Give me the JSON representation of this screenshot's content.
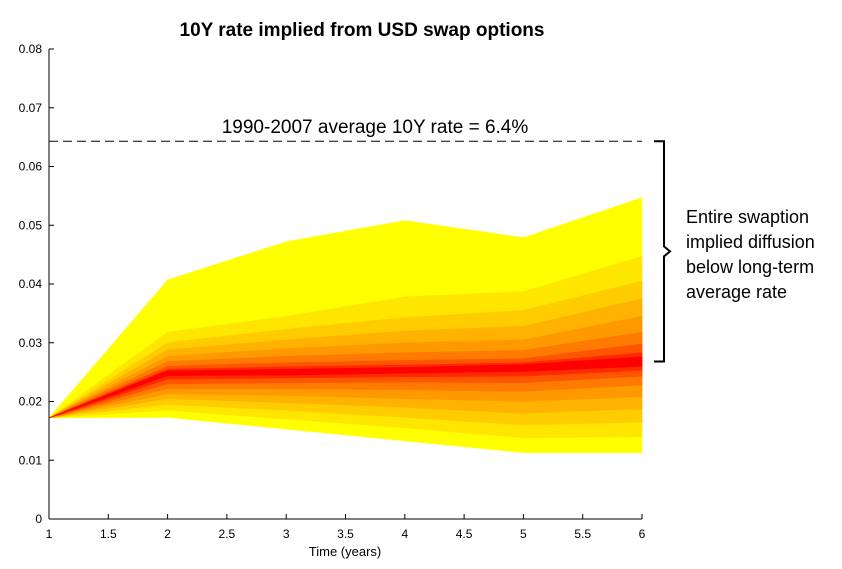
{
  "chart_data": {
    "type": "area",
    "title": "10Y rate implied from USD swap options",
    "xlabel": "Time (years)",
    "ylabel": "",
    "xlim": [
      1,
      6
    ],
    "ylim": [
      0,
      0.08
    ],
    "xticks": [
      "1",
      "1.5",
      "2",
      "2.5",
      "3",
      "3.5",
      "4",
      "4.5",
      "5",
      "5.5",
      "6"
    ],
    "yticks": [
      "0",
      "0.01",
      "0.02",
      "0.03",
      "0.04",
      "0.05",
      "0.06",
      "0.07",
      "0.08"
    ],
    "grid": false,
    "x": [
      1,
      2,
      3,
      4,
      5,
      6
    ],
    "median": [
      0.0172,
      0.0248,
      0.025,
      0.0253,
      0.0258,
      0.0268
    ],
    "bands": [
      {
        "color": "#ffff00",
        "upper": [
          0.0172,
          0.0407,
          0.0472,
          0.0508,
          0.0479,
          0.0547
        ],
        "lower": [
          0.0172,
          0.0173,
          0.0153,
          0.0133,
          0.0113,
          0.0113
        ]
      },
      {
        "color": "#ffe600",
        "upper": [
          0.0172,
          0.0318,
          0.0345,
          0.0378,
          0.0387,
          0.0447
        ],
        "lower": [
          0.0172,
          0.0185,
          0.017,
          0.0155,
          0.0138,
          0.014
        ]
      },
      {
        "color": "#ffcc00",
        "upper": [
          0.0172,
          0.03,
          0.0323,
          0.0343,
          0.0355,
          0.0405
        ],
        "lower": [
          0.0172,
          0.0195,
          0.0185,
          0.0173,
          0.016,
          0.0165
        ]
      },
      {
        "color": "#ffb300",
        "upper": [
          0.0172,
          0.0288,
          0.0305,
          0.032,
          0.0328,
          0.0375
        ],
        "lower": [
          0.0172,
          0.0205,
          0.0198,
          0.019,
          0.018,
          0.0188
        ]
      },
      {
        "color": "#ff9900",
        "upper": [
          0.0172,
          0.0277,
          0.029,
          0.03,
          0.0305,
          0.0345
        ],
        "lower": [
          0.0172,
          0.0213,
          0.021,
          0.0205,
          0.02,
          0.0208
        ]
      },
      {
        "color": "#ff7a00",
        "upper": [
          0.0172,
          0.0268,
          0.0277,
          0.0283,
          0.0287,
          0.0318
        ],
        "lower": [
          0.0172,
          0.0222,
          0.0222,
          0.022,
          0.0217,
          0.0228
        ]
      },
      {
        "color": "#ff5500",
        "upper": [
          0.0172,
          0.026,
          0.0266,
          0.027,
          0.0273,
          0.0298
        ],
        "lower": [
          0.0172,
          0.023,
          0.0232,
          0.0233,
          0.0232,
          0.0243
        ]
      },
      {
        "color": "#ff2a00",
        "upper": [
          0.0172,
          0.0255,
          0.0259,
          0.0262,
          0.0266,
          0.0283
        ],
        "lower": [
          0.0172,
          0.0238,
          0.024,
          0.0242,
          0.0243,
          0.0253
        ]
      },
      {
        "color": "#ff0000",
        "upper": [
          0.0172,
          0.0252,
          0.0255,
          0.0258,
          0.0263,
          0.0276
        ],
        "lower": [
          0.0172,
          0.0244,
          0.0245,
          0.0248,
          0.0251,
          0.026
        ]
      }
    ],
    "reference_line": {
      "y": 0.0643,
      "label": "1990-2007 average 10Y rate = 6.4%",
      "style": "dashed"
    },
    "annotation": {
      "lines": [
        "Entire swaption",
        "implied diffusion",
        "below long-term",
        "average rate"
      ],
      "bracket_range": [
        0.0268,
        0.0643
      ]
    }
  }
}
